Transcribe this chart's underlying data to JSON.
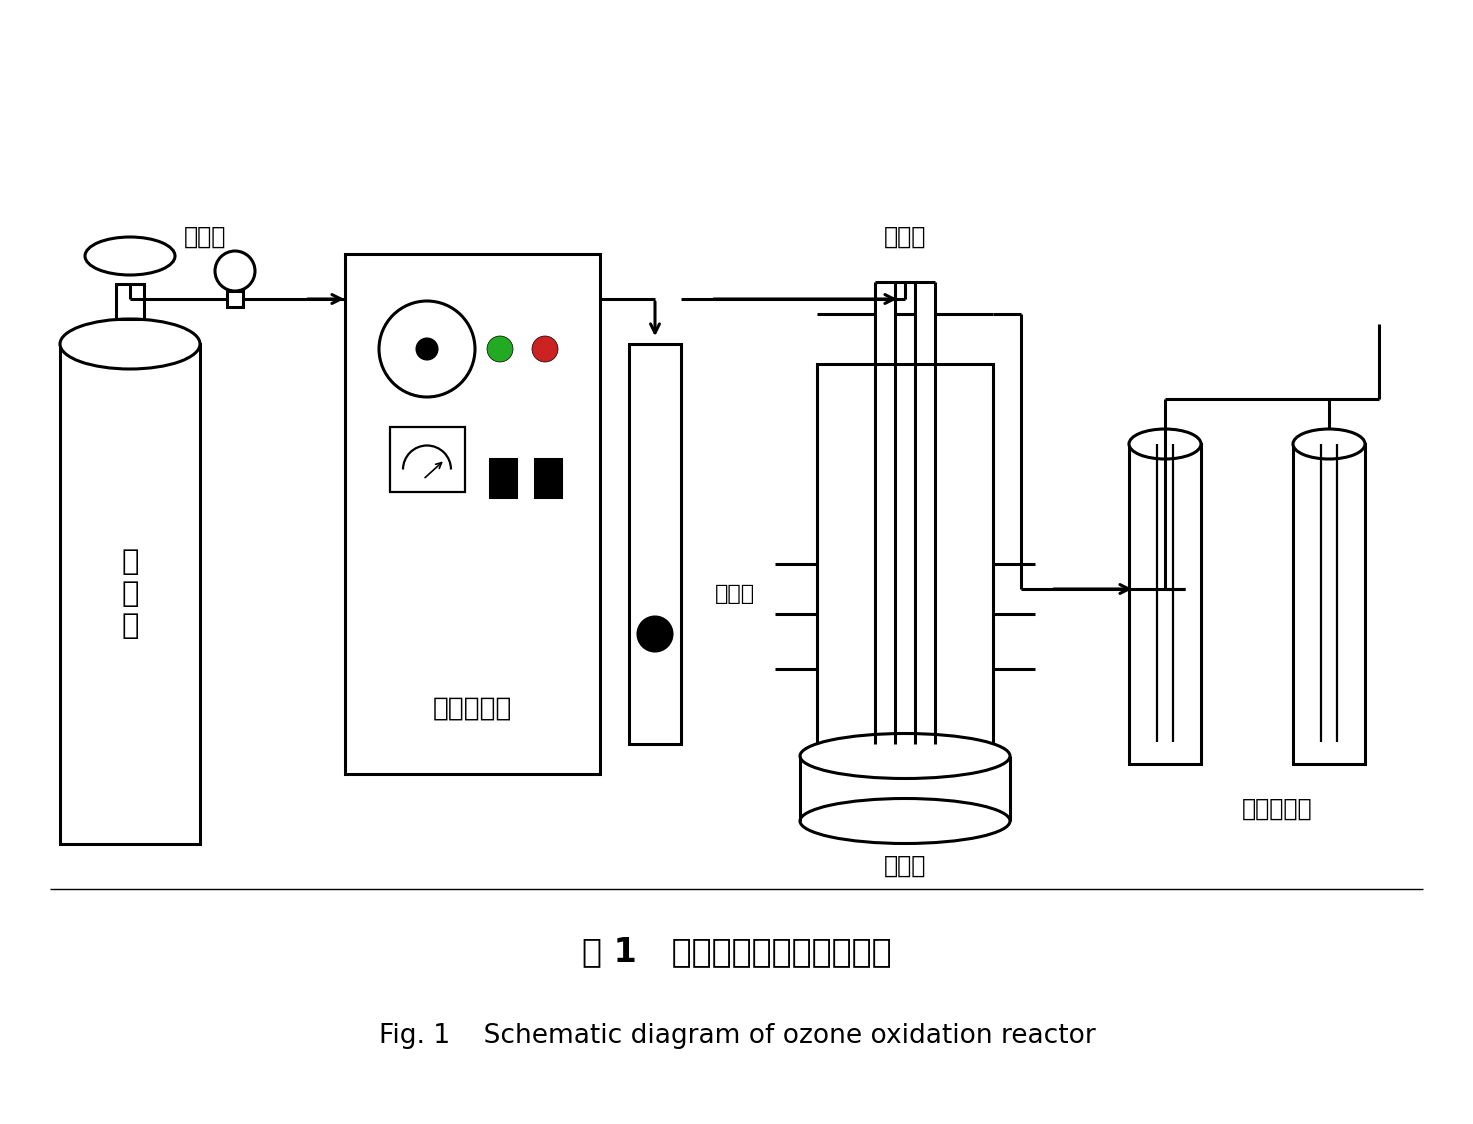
{
  "title_cn": "图 1   臭氧氧化反应装置示意图",
  "title_en": "Fig. 1    Schematic diagram of ozone oxidation reactor",
  "label_oxygen": "氧\n气\n瓶",
  "label_valve": "分压阀",
  "label_generator": "臭氧发生器",
  "label_flowmeter": "流量计",
  "label_reactor": "反应器",
  "label_stirrer": "搅拌器",
  "label_exhaust": "尾气吸收瓶",
  "lc": "#000000",
  "bg": "#ffffff",
  "green": "#22aa22",
  "red": "#cc2222",
  "dark_gray": "#333333",
  "lw": 2.2,
  "lw_thin": 1.6
}
